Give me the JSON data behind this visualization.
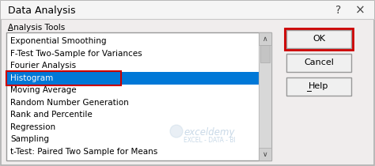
{
  "title": "Data Analysis",
  "section_label": "Analysis Tools",
  "list_items": [
    "Exponential Smoothing",
    "F-Test Two-Sample for Variances",
    "Fourier Analysis",
    "Histogram",
    "Moving Average",
    "Random Number Generation",
    "Rank and Percentile",
    "Regression",
    "Sampling",
    "t-Test: Paired Two Sample for Means"
  ],
  "selected_item": "Histogram",
  "buttons": [
    "OK",
    "Cancel",
    "Help"
  ],
  "bg_color": "#e8e8e8",
  "dialog_bg": "#f0eded",
  "list_bg": "#ffffff",
  "selected_bg": "#0078d7",
  "selected_fg": "#ffffff",
  "button_ok_border": "#cc0000",
  "selected_item_border": "#cc0000",
  "scrollbar_bg": "#d4d0c8",
  "scrollbar_thumb": "#c0c0c0",
  "watermark_text": "exceldemy",
  "watermark_subtext": "EXCEL - DATA - BI",
  "watermark_color": "#b8cde0"
}
